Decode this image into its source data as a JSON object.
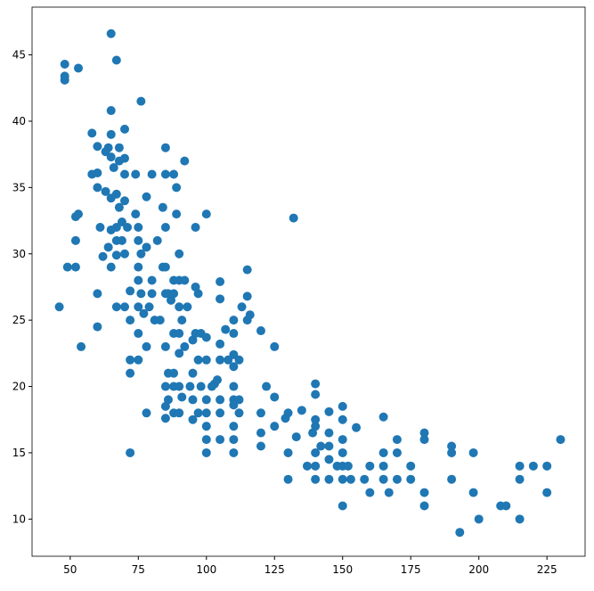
{
  "chart_data": {
    "type": "scatter",
    "color": "#1f77b4",
    "xlim": [
      36,
      239
    ],
    "ylim": [
      7.2,
      48.6
    ],
    "xticks": [
      50,
      75,
      100,
      125,
      150,
      175,
      200,
      225
    ],
    "yticks": [
      10,
      15,
      20,
      25,
      30,
      35,
      40,
      45
    ],
    "x": [
      46,
      48,
      48,
      48,
      49,
      52,
      52,
      52,
      53,
      53,
      54,
      58,
      58,
      60,
      60,
      60,
      60,
      60,
      61,
      62,
      63,
      63,
      64,
      64,
      65,
      65,
      65,
      65,
      65,
      65,
      65,
      66,
      67,
      67,
      67,
      67,
      67,
      67,
      68,
      68,
      68,
      69,
      69,
      70,
      70,
      70,
      70,
      70,
      70,
      71,
      72,
      72,
      72,
      72,
      72,
      74,
      74,
      75,
      75,
      75,
      75,
      75,
      75,
      75,
      76,
      76,
      76,
      77,
      78,
      78,
      78,
      78,
      79,
      80,
      80,
      80,
      81,
      82,
      83,
      84,
      84,
      85,
      85,
      85,
      85,
      85,
      85,
      85,
      85,
      85,
      86,
      86,
      86,
      87,
      88,
      88,
      88,
      88,
      88,
      88,
      88,
      89,
      89,
      90,
      90,
      90,
      90,
      90,
      90,
      90,
      91,
      91,
      92,
      92,
      92,
      93,
      94,
      95,
      95,
      95,
      95,
      96,
      96,
      96,
      97,
      97,
      97,
      98,
      98,
      100,
      100,
      100,
      100,
      100,
      100,
      100,
      100,
      102,
      103,
      104,
      105,
      105,
      105,
      105,
      105,
      105,
      105,
      107,
      108,
      110,
      110,
      110,
      110,
      110,
      110,
      110,
      110,
      110,
      110,
      112,
      112,
      112,
      113,
      115,
      115,
      115,
      116,
      120,
      120,
      120,
      120,
      122,
      125,
      125,
      125,
      129,
      130,
      130,
      130,
      132,
      133,
      135,
      137,
      139,
      140,
      140,
      140,
      140,
      140,
      140,
      140,
      142,
      145,
      145,
      145,
      145,
      145,
      148,
      150,
      150,
      150,
      150,
      150,
      150,
      150,
      152,
      153,
      155,
      158,
      160,
      160,
      165,
      165,
      165,
      165,
      167,
      170,
      170,
      170,
      175,
      175,
      180,
      180,
      180,
      180,
      190,
      190,
      190,
      193,
      198,
      198,
      200,
      208,
      210,
      215,
      215,
      215,
      220,
      225,
      225,
      230
    ],
    "values": [
      26,
      44.3,
      43.4,
      43.1,
      29,
      29,
      32.8,
      31,
      44,
      33,
      23,
      39.1,
      36,
      36.1,
      35,
      38.1,
      27,
      24.5,
      32,
      29.8,
      34.7,
      37.7,
      38,
      30.5,
      46.6,
      40.8,
      39,
      37.3,
      34.2,
      31.8,
      29,
      36.5,
      44.6,
      34.5,
      32,
      31,
      29.9,
      26,
      37,
      38,
      33.5,
      32.4,
      31,
      37.2,
      39.4,
      36,
      34,
      30,
      26,
      32,
      25,
      27.2,
      22,
      21,
      15,
      36,
      33,
      32,
      31,
      29,
      28,
      26,
      24,
      22,
      41.5,
      30,
      27,
      25.5,
      34.3,
      30.5,
      23,
      18,
      26,
      36,
      28,
      27,
      25,
      31,
      25,
      33.5,
      29,
      38,
      36,
      32,
      29,
      27,
      23,
      20,
      18.5,
      17.6,
      27,
      21,
      19,
      26.5,
      36,
      28,
      27,
      24,
      21,
      20,
      18,
      35,
      33,
      30,
      28,
      26,
      24,
      22.5,
      20,
      18,
      25,
      19.2,
      37,
      28,
      23,
      26,
      20,
      23.5,
      21,
      19,
      17.5,
      32,
      27.5,
      24,
      27,
      22,
      18,
      24,
      20,
      23.7,
      22,
      19,
      18,
      17,
      16,
      15,
      33,
      20,
      20.2,
      20.5,
      27.9,
      26.6,
      23.2,
      22,
      19,
      18,
      16,
      24.3,
      22,
      25,
      24,
      22.4,
      21.5,
      20,
      19,
      18.6,
      17,
      16,
      15,
      22,
      19,
      18,
      26,
      28.8,
      26.8,
      25,
      25.4,
      24.2,
      18,
      16.5,
      15.5,
      20,
      23,
      19.2,
      17,
      17.6,
      18,
      15,
      13,
      32.7,
      16.2,
      18.2,
      14,
      16.5,
      20.2,
      19.4,
      17.5,
      17,
      15,
      14,
      13,
      15.5,
      18.1,
      16.5,
      15.5,
      14.5,
      13,
      14,
      18.5,
      17.5,
      16,
      15,
      14,
      13,
      11,
      14,
      13,
      16.9,
      13,
      14,
      12,
      17.7,
      15,
      14,
      13,
      12,
      16,
      15,
      13,
      14,
      13,
      16.5,
      16,
      12,
      11,
      15.5,
      15,
      13,
      9,
      15,
      12,
      10,
      11,
      11,
      14,
      13,
      10,
      14,
      14,
      12,
      16
    ]
  }
}
